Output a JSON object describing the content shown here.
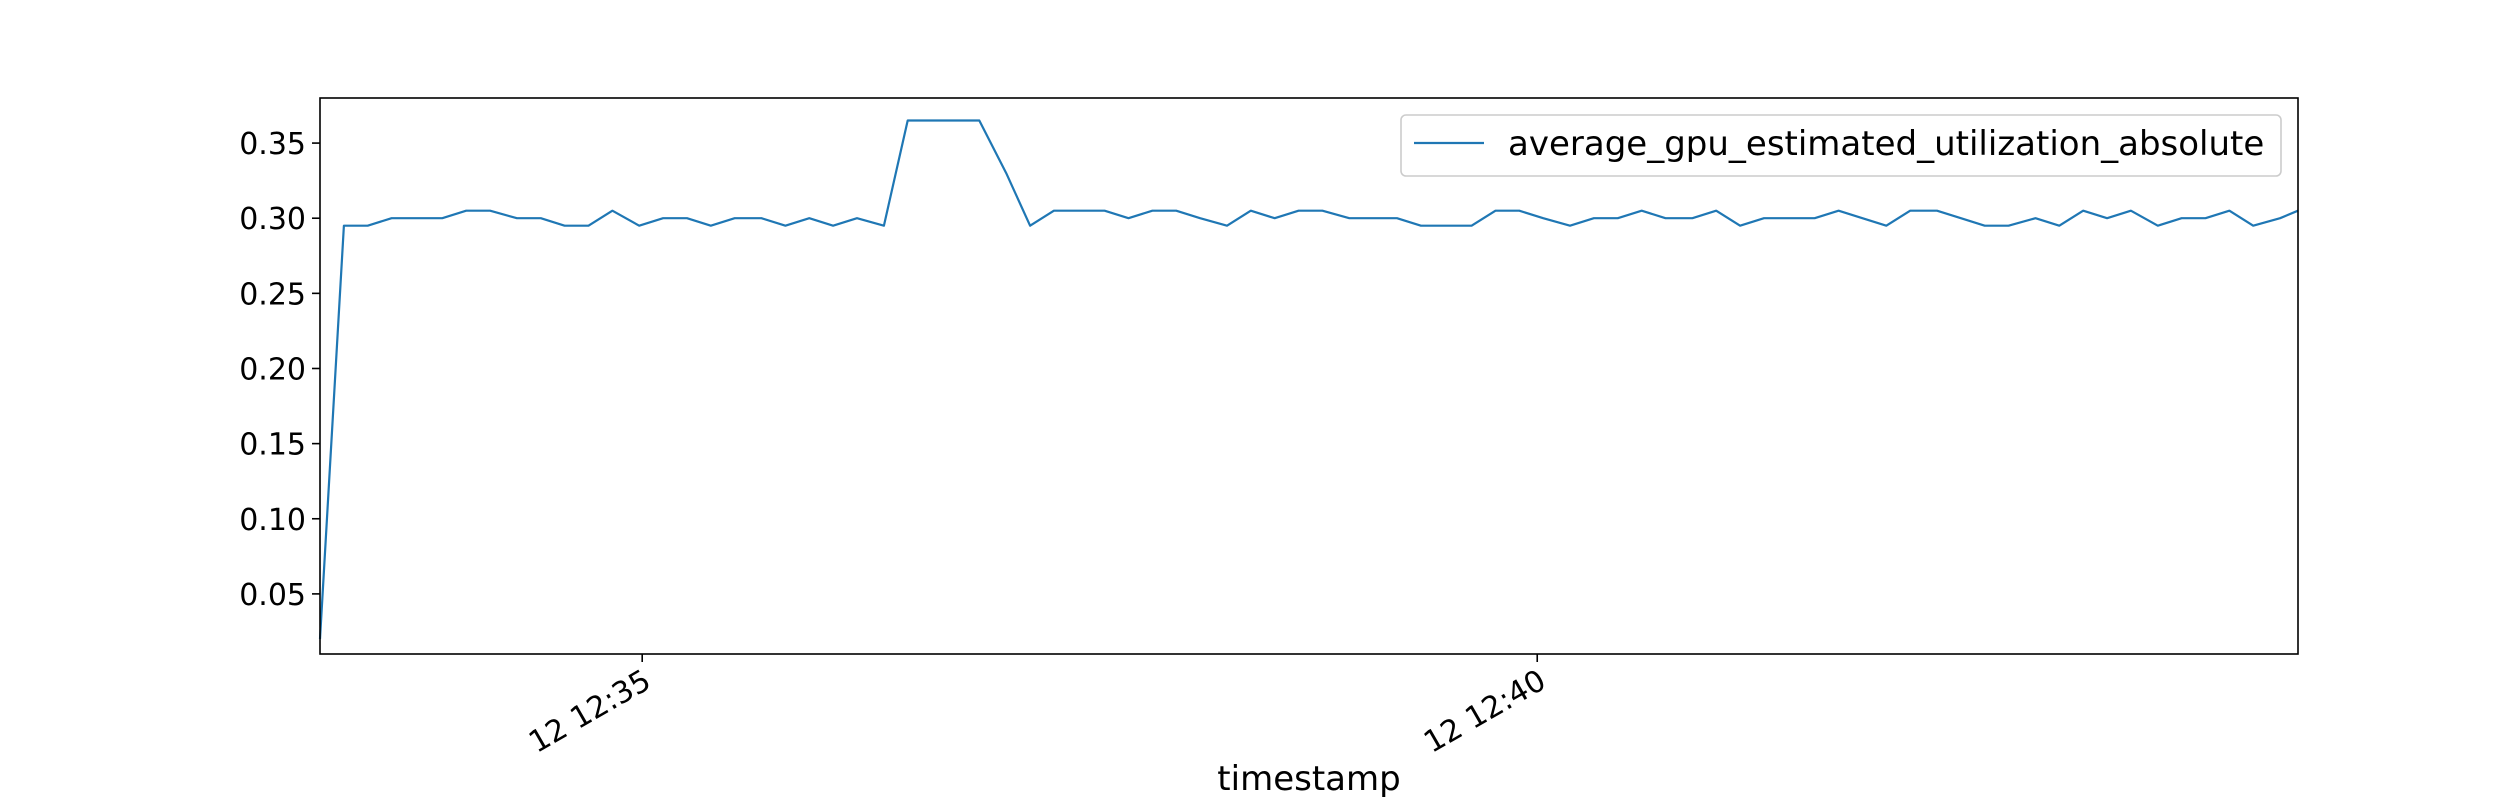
{
  "chart_data": {
    "type": "line",
    "xlabel": "timestamp",
    "ylabel": "",
    "legend_position": "top-right",
    "grid": false,
    "ylim": [
      0.01,
      0.38
    ],
    "xlim": [
      "12 12:33:12",
      "12 12:44:15"
    ],
    "x_ticks": [
      {
        "label": "12 12:35",
        "value": "12 12:35:00"
      },
      {
        "label": "12 12:40",
        "value": "12 12:40:00"
      }
    ],
    "y_ticks": [
      {
        "label": "0.05",
        "value": 0.05
      },
      {
        "label": "0.10",
        "value": 0.1
      },
      {
        "label": "0.15",
        "value": 0.15
      },
      {
        "label": "0.20",
        "value": 0.2
      },
      {
        "label": "0.25",
        "value": 0.25
      },
      {
        "label": "0.30",
        "value": 0.3
      },
      {
        "label": "0.35",
        "value": 0.35
      }
    ],
    "series": [
      {
        "name": "average_gpu_estimated_utilization_absolute",
        "color": "#1f77b4",
        "x": [
          "12 12:33:12",
          "12 12:33:20",
          "12 12:33:28",
          "12 12:33:36",
          "12 12:33:45",
          "12 12:33:53",
          "12 12:34:01",
          "12 12:34:09",
          "12 12:34:18",
          "12 12:34:26",
          "12 12:34:34",
          "12 12:34:42",
          "12 12:34:50",
          "12 12:34:59",
          "12 12:35:07",
          "12 12:35:15",
          "12 12:35:23",
          "12 12:35:31",
          "12 12:35:40",
          "12 12:35:48",
          "12 12:35:56",
          "12 12:36:04",
          "12 12:36:12",
          "12 12:36:21",
          "12 12:36:29",
          "12 12:36:37",
          "12 12:36:45",
          "12 12:36:53",
          "12 12:37:02",
          "12 12:37:10",
          "12 12:37:18",
          "12 12:37:26",
          "12 12:37:35",
          "12 12:37:43",
          "12 12:37:51",
          "12 12:37:59",
          "12 12:38:07",
          "12 12:38:16",
          "12 12:38:24",
          "12 12:38:32",
          "12 12:38:40",
          "12 12:38:48",
          "12 12:38:57",
          "12 12:39:05",
          "12 12:39:13",
          "12 12:39:21",
          "12 12:39:29",
          "12 12:39:38",
          "12 12:39:46",
          "12 12:39:54",
          "12 12:40:02",
          "12 12:40:11",
          "12 12:40:19",
          "12 12:40:27",
          "12 12:40:35",
          "12 12:40:43",
          "12 12:40:52",
          "12 12:41:00",
          "12 12:41:08",
          "12 12:41:16",
          "12 12:41:24",
          "12 12:41:33",
          "12 12:41:41",
          "12 12:41:49",
          "12 12:41:57",
          "12 12:42:05",
          "12 12:42:14",
          "12 12:42:22",
          "12 12:42:30",
          "12 12:42:38",
          "12 12:42:47",
          "12 12:42:55",
          "12 12:43:03",
          "12 12:43:11",
          "12 12:43:19",
          "12 12:43:28",
          "12 12:43:36",
          "12 12:43:44",
          "12 12:43:52",
          "12 12:44:00",
          "12 12:44:09",
          "12 12:44:15"
        ],
        "values": [
          0.02,
          0.295,
          0.295,
          0.3,
          0.3,
          0.3,
          0.305,
          0.305,
          0.3,
          0.3,
          0.295,
          0.295,
          0.305,
          0.295,
          0.3,
          0.3,
          0.295,
          0.3,
          0.3,
          0.295,
          0.3,
          0.295,
          0.3,
          0.295,
          0.365,
          0.365,
          0.365,
          0.365,
          0.33,
          0.295,
          0.305,
          0.305,
          0.305,
          0.3,
          0.305,
          0.305,
          0.3,
          0.295,
          0.305,
          0.3,
          0.305,
          0.305,
          0.3,
          0.3,
          0.3,
          0.295,
          0.295,
          0.295,
          0.305,
          0.305,
          0.3,
          0.295,
          0.3,
          0.3,
          0.305,
          0.3,
          0.3,
          0.305,
          0.295,
          0.3,
          0.3,
          0.3,
          0.305,
          0.3,
          0.295,
          0.305,
          0.305,
          0.3,
          0.295,
          0.295,
          0.3,
          0.295,
          0.305,
          0.3,
          0.305,
          0.295,
          0.3,
          0.3,
          0.305,
          0.295,
          0.3,
          0.305
        ]
      }
    ]
  }
}
